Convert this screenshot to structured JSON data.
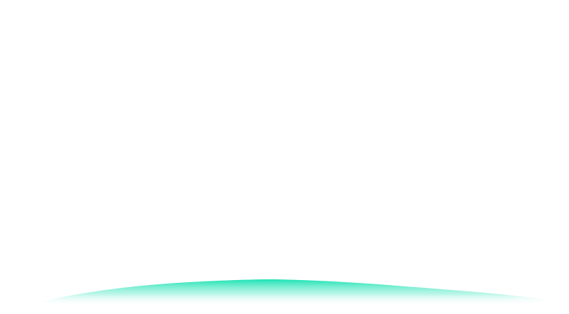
{
  "theme": {
    "background": "#ffffff",
    "accent": "#1de2b4"
  },
  "decoration": {
    "icon": "teal-gradient-wave"
  }
}
